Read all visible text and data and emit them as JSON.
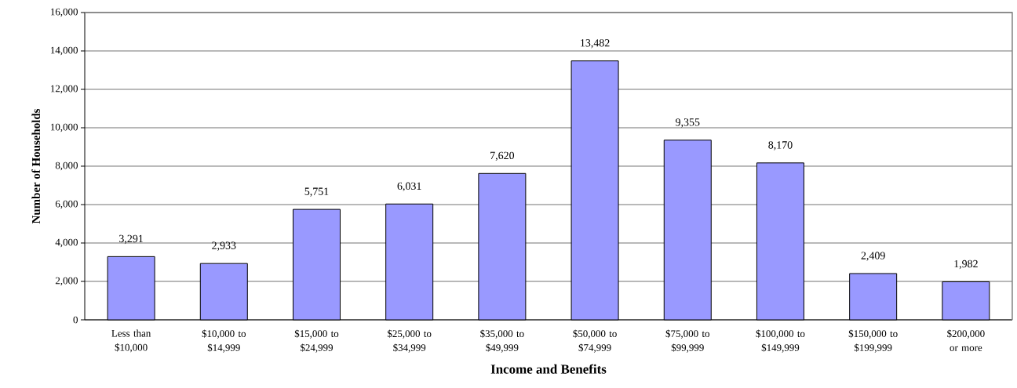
{
  "chart_data": {
    "type": "bar",
    "xlabel": "Income and Benefits",
    "ylabel": "Number of Households",
    "categories": [
      "Less than $10,000",
      "$10,000 to $14,999",
      "$15,000 to $24,999",
      "$25,000 to $34,999",
      "$35,000 to $49,999",
      "$50,000 to $74,999",
      "$75,000 to $99,999",
      "$100,000 to $149,999",
      "$150,000 to $199,999",
      "$200,000 or more"
    ],
    "values": [
      3291,
      2933,
      5751,
      6031,
      7620,
      13482,
      9355,
      8170,
      2409,
      1982
    ],
    "value_labels": [
      "3,291",
      "2,933",
      "5,751",
      "6,031",
      "7,620",
      "13,482",
      "9,355",
      "8,170",
      "2,409",
      "1,982"
    ],
    "color": "#9999ff",
    "ylim": [
      0,
      16000
    ],
    "yticks": [
      0,
      {
        "value": 2000,
        "label": "2,000"
      },
      {
        "value": 4000,
        "label": "4,000"
      },
      {
        "value": 6000,
        "label": "6,000"
      },
      {
        "value": 8000,
        "label": "8,000"
      },
      {
        "value": 10000,
        "label": "10,000"
      },
      {
        "value": 12000,
        "label": "12,000"
      },
      {
        "value": 14000,
        "label": "14,000"
      },
      {
        "value": 16000,
        "label": "16,000"
      }
    ],
    "grid": "y"
  }
}
